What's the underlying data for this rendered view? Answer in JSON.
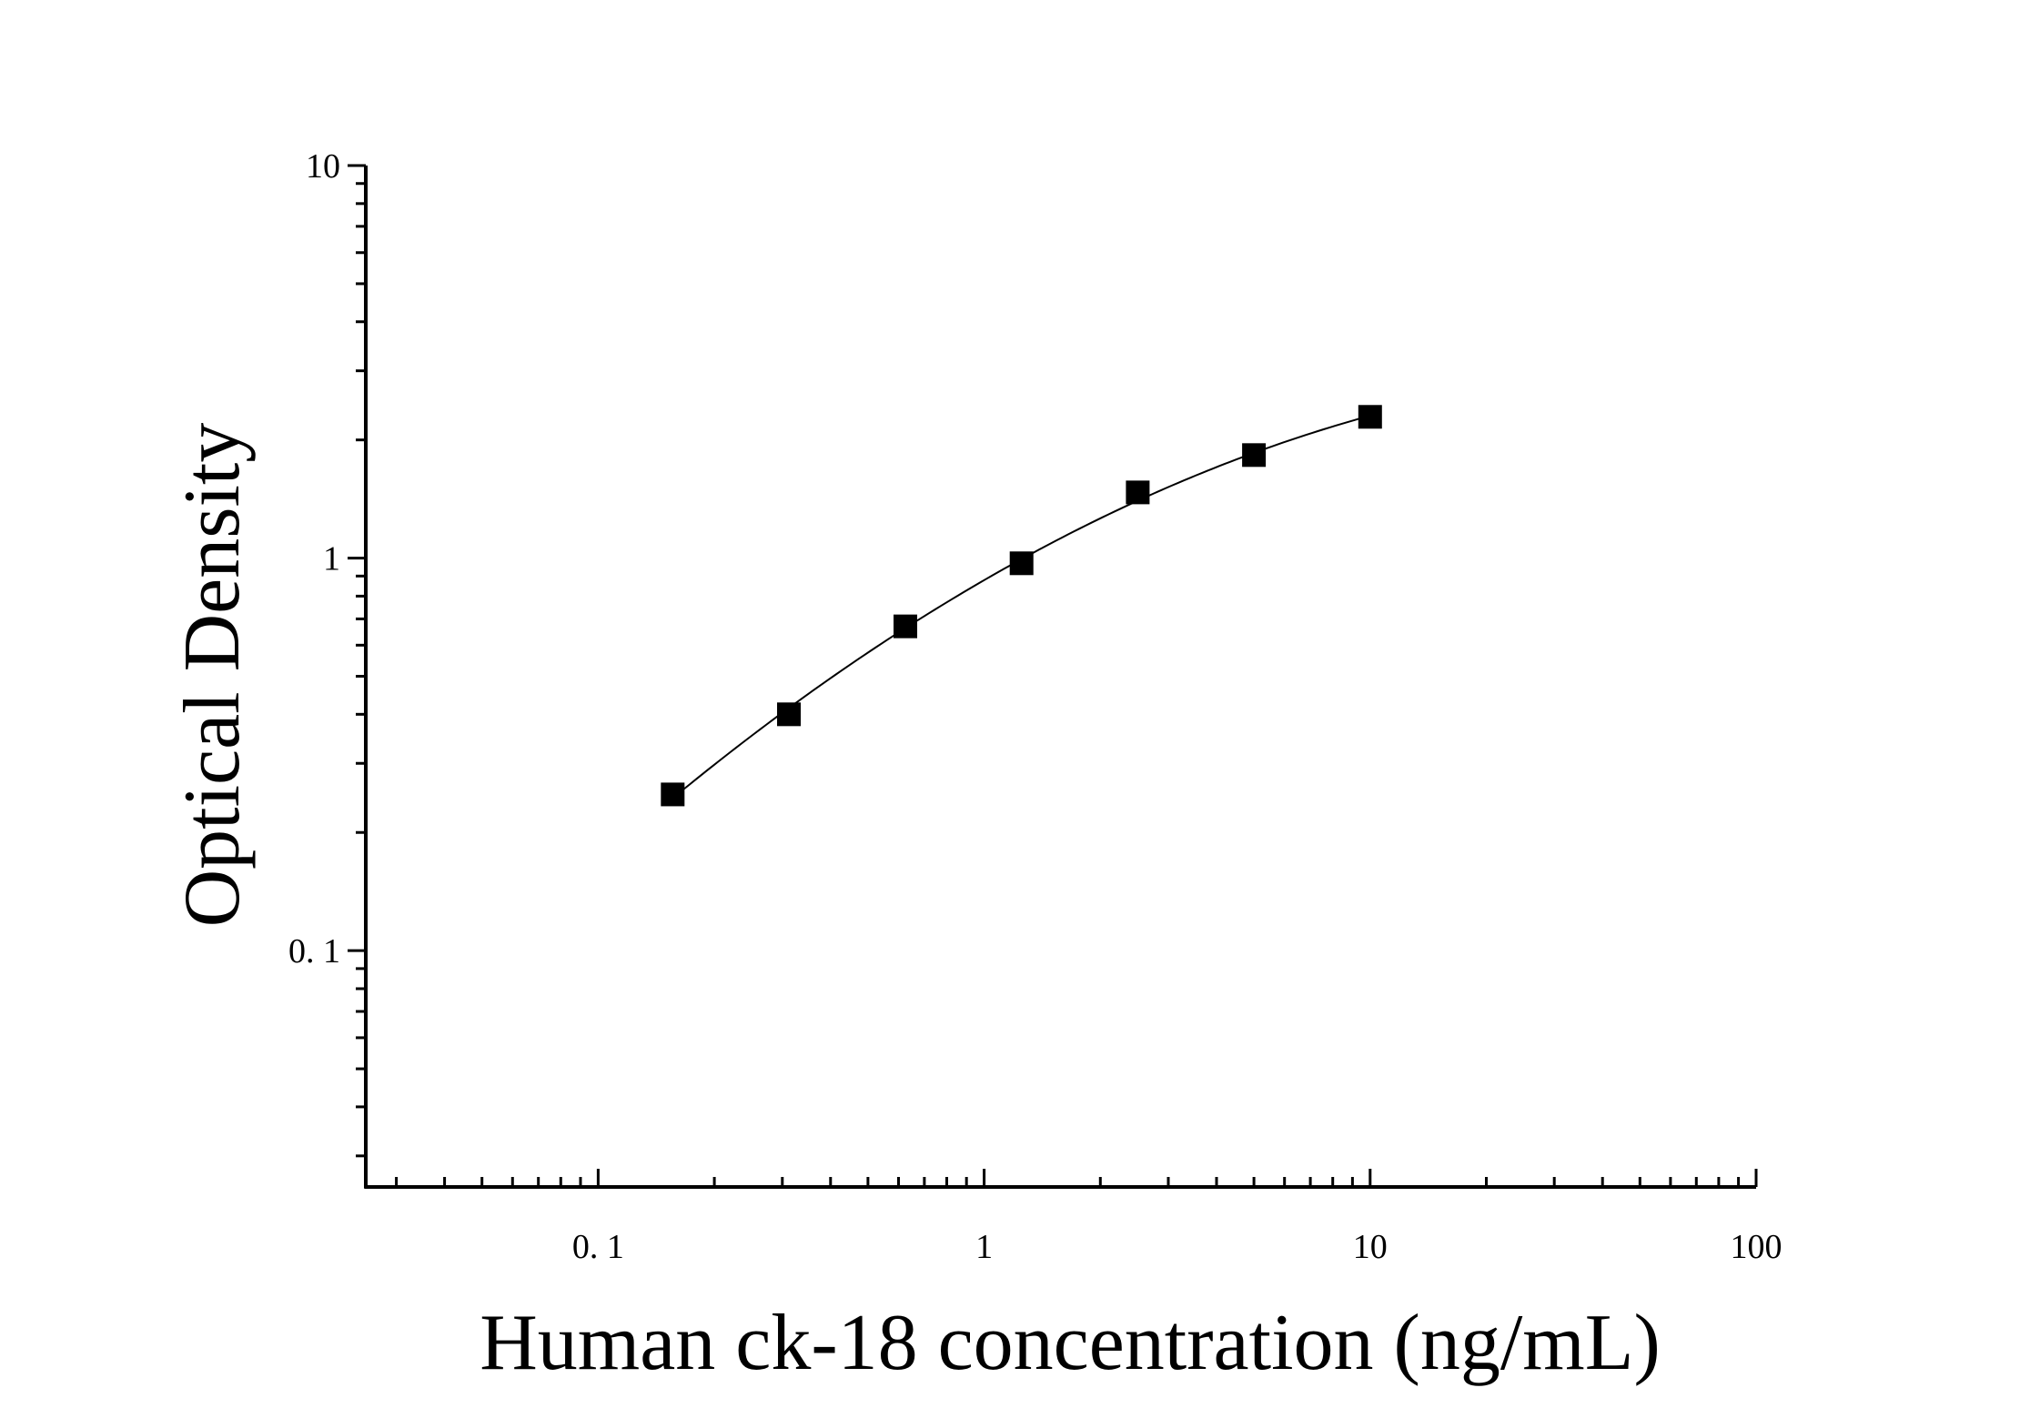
{
  "chart_data": {
    "type": "scatter",
    "title": "",
    "xlabel": "Human ck-18 concentration (ng/mL)",
    "ylabel": "Optical Density",
    "x_scale": "log",
    "y_scale": "log",
    "xlim": [
      0.025,
      100
    ],
    "ylim": [
      0.025,
      10
    ],
    "x_ticks": [
      {
        "value": 0.1,
        "label": "0. 1"
      },
      {
        "value": 1,
        "label": "1"
      },
      {
        "value": 10,
        "label": "10"
      },
      {
        "value": 100,
        "label": "100"
      }
    ],
    "y_ticks": [
      {
        "value": 0.1,
        "label": "0. 1"
      },
      {
        "value": 1,
        "label": "1"
      },
      {
        "value": 10,
        "label": "10"
      }
    ],
    "grid": false,
    "legend": "none",
    "colors": {
      "marker": "#000000",
      "curve": "#000000",
      "axis": "#000000"
    },
    "series": [
      {
        "marker": "square",
        "points": [
          {
            "x": 0.156,
            "y": 0.25
          },
          {
            "x": 0.312,
            "y": 0.4
          },
          {
            "x": 0.625,
            "y": 0.67
          },
          {
            "x": 1.25,
            "y": 0.97
          },
          {
            "x": 2.5,
            "y": 1.47
          },
          {
            "x": 5,
            "y": 1.83
          },
          {
            "x": 10,
            "y": 2.29
          }
        ],
        "fit_curve": true
      }
    ]
  }
}
